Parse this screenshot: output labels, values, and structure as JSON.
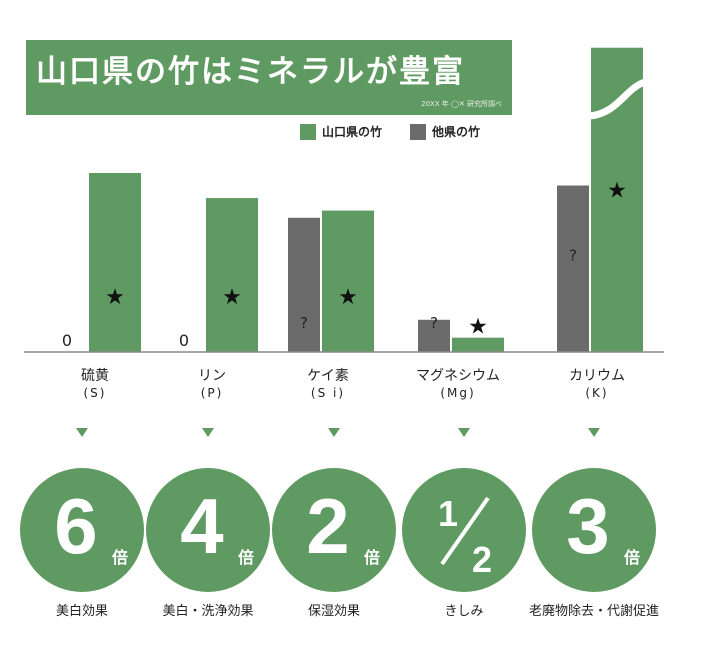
{
  "title": "山口県の竹はミネラルが豊富",
  "source": "20XX 年 ◯✕ 研究所調べ",
  "legend": [
    {
      "label": "山口県の竹",
      "color": "#5f9a62"
    },
    {
      "label": "他県の竹",
      "color": "#6b6b6b"
    }
  ],
  "chart_data": {
    "type": "bar",
    "categories": [
      "硫黄",
      "リン",
      "ケイ素",
      "マグネシウム",
      "カリウム"
    ],
    "category_symbols": [
      "(S)",
      "(P)",
      "(S i)",
      "(Mg)",
      "(K)"
    ],
    "series": [
      {
        "name": "山口県の竹",
        "values": [
          100,
          86,
          79,
          8,
          170
        ],
        "marker": "★"
      },
      {
        "name": "他県の竹",
        "values": [
          0,
          0,
          75,
          18,
          93
        ],
        "marker": "?"
      }
    ],
    "zero_labels": [
      "0",
      "0",
      "",
      "",
      ""
    ],
    "axis_break": "カリウム",
    "ratios": [
      {
        "value": "6",
        "unit": "倍",
        "effect": "美白効果"
      },
      {
        "value": "4",
        "unit": "倍",
        "effect": "美白・洗浄効果"
      },
      {
        "value": "2",
        "unit": "倍",
        "effect": "保湿効果"
      },
      {
        "value": "1/2",
        "unit": "",
        "effect": "きしみ"
      },
      {
        "value": "3",
        "unit": "倍",
        "effect": "老廃物除去・代謝促進"
      }
    ]
  }
}
